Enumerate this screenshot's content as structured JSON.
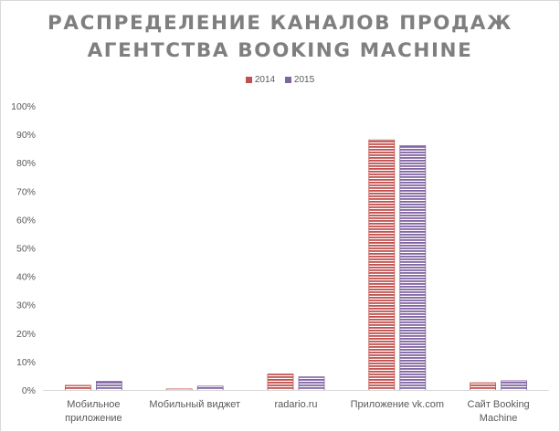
{
  "chart_data": {
    "type": "bar",
    "title_lines": [
      "РАСПРЕДЕЛЕНИЕ КАНАЛОВ ПРОДАЖ",
      "АГЕНТСТВА BOOKING MACHINE"
    ],
    "categories": [
      [
        "Мобильное",
        "приложение"
      ],
      [
        "Мобильный виджет"
      ],
      [
        "radario.ru"
      ],
      [
        "Приложение vk.com"
      ],
      [
        "Сайт Booking",
        "Machine"
      ]
    ],
    "series": [
      {
        "name": "2014",
        "color": "#c0504d",
        "values": [
          0.018,
          0.005,
          0.058,
          0.882,
          0.027
        ]
      },
      {
        "name": "2015",
        "color": "#8064a2",
        "values": [
          0.032,
          0.015,
          0.048,
          0.862,
          0.034
        ]
      }
    ],
    "ylim": [
      0,
      1
    ],
    "yticks": [
      "0%",
      "10%",
      "20%",
      "30%",
      "40%",
      "50%",
      "60%",
      "70%",
      "80%",
      "90%",
      "100%"
    ],
    "legend_position": "top-center",
    "grid": false
  }
}
